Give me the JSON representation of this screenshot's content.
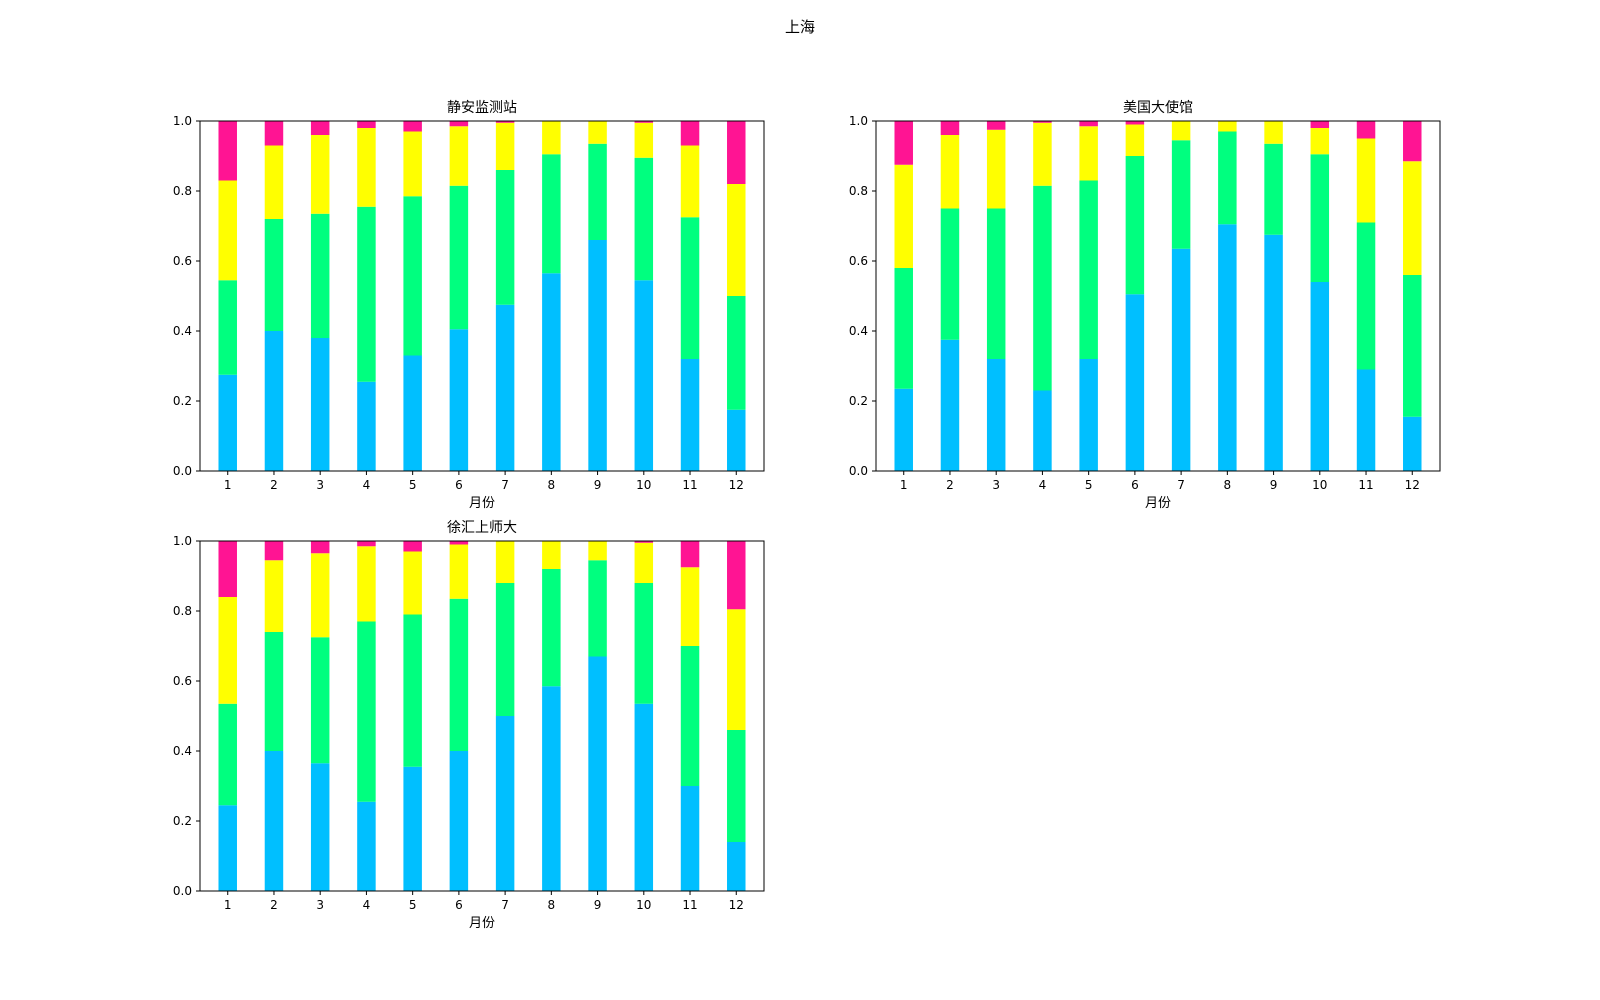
{
  "figure": {
    "suptitle": "上海",
    "colors": [
      "#00BFFF",
      "#00FF7F",
      "#FFFF00",
      "#FF1493"
    ]
  },
  "chart_data": [
    {
      "type": "bar",
      "stacked": true,
      "title": "静安监测站",
      "xlabel": "月份",
      "ylabel": "",
      "ylim": [
        0,
        1.0
      ],
      "yticks": [
        "0.0",
        "0.2",
        "0.4",
        "0.6",
        "0.8",
        "1.0"
      ],
      "grid": false,
      "categories": [
        "1",
        "2",
        "3",
        "4",
        "5",
        "6",
        "7",
        "8",
        "9",
        "10",
        "11",
        "12"
      ],
      "series": [
        {
          "values": [
            0.275,
            0.4,
            0.38,
            0.255,
            0.33,
            0.405,
            0.475,
            0.565,
            0.66,
            0.545,
            0.32,
            0.175
          ]
        },
        {
          "values": [
            0.27,
            0.32,
            0.355,
            0.5,
            0.455,
            0.41,
            0.385,
            0.34,
            0.275,
            0.35,
            0.405,
            0.325
          ]
        },
        {
          "values": [
            0.285,
            0.21,
            0.225,
            0.225,
            0.185,
            0.17,
            0.135,
            0.095,
            0.065,
            0.1,
            0.205,
            0.32
          ]
        },
        {
          "values": [
            0.17,
            0.07,
            0.04,
            0.02,
            0.03,
            0.015,
            0.005,
            0.0,
            0.0,
            0.005,
            0.07,
            0.18
          ]
        }
      ]
    },
    {
      "type": "bar",
      "stacked": true,
      "title": "美国大使馆",
      "xlabel": "月份",
      "ylabel": "",
      "ylim": [
        0,
        1.0
      ],
      "yticks": [
        "0.0",
        "0.2",
        "0.4",
        "0.6",
        "0.8",
        "1.0"
      ],
      "grid": false,
      "categories": [
        "1",
        "2",
        "3",
        "4",
        "5",
        "6",
        "7",
        "8",
        "9",
        "10",
        "11",
        "12"
      ],
      "series": [
        {
          "values": [
            0.235,
            0.375,
            0.32,
            0.23,
            0.32,
            0.505,
            0.635,
            0.705,
            0.675,
            0.54,
            0.29,
            0.155
          ]
        },
        {
          "values": [
            0.345,
            0.375,
            0.43,
            0.585,
            0.51,
            0.395,
            0.31,
            0.265,
            0.26,
            0.365,
            0.42,
            0.405
          ]
        },
        {
          "values": [
            0.295,
            0.21,
            0.225,
            0.18,
            0.155,
            0.09,
            0.055,
            0.03,
            0.065,
            0.075,
            0.24,
            0.325
          ]
        },
        {
          "values": [
            0.125,
            0.04,
            0.025,
            0.005,
            0.015,
            0.01,
            0.0,
            0.0,
            0.0,
            0.02,
            0.05,
            0.115
          ]
        }
      ]
    },
    {
      "type": "bar",
      "stacked": true,
      "title": "徐汇上师大",
      "xlabel": "月份",
      "ylabel": "",
      "ylim": [
        0,
        1.0
      ],
      "yticks": [
        "0.0",
        "0.2",
        "0.4",
        "0.6",
        "0.8",
        "1.0"
      ],
      "grid": false,
      "categories": [
        "1",
        "2",
        "3",
        "4",
        "5",
        "6",
        "7",
        "8",
        "9",
        "10",
        "11",
        "12"
      ],
      "series": [
        {
          "values": [
            0.245,
            0.4,
            0.365,
            0.255,
            0.355,
            0.4,
            0.5,
            0.585,
            0.67,
            0.535,
            0.3,
            0.14
          ]
        },
        {
          "values": [
            0.29,
            0.34,
            0.36,
            0.515,
            0.435,
            0.435,
            0.38,
            0.335,
            0.275,
            0.345,
            0.4,
            0.32
          ]
        },
        {
          "values": [
            0.305,
            0.205,
            0.24,
            0.215,
            0.18,
            0.155,
            0.12,
            0.08,
            0.055,
            0.115,
            0.225,
            0.345
          ]
        },
        {
          "values": [
            0.16,
            0.055,
            0.035,
            0.015,
            0.03,
            0.01,
            0.0,
            0.0,
            0.0,
            0.005,
            0.075,
            0.195
          ]
        }
      ]
    }
  ]
}
